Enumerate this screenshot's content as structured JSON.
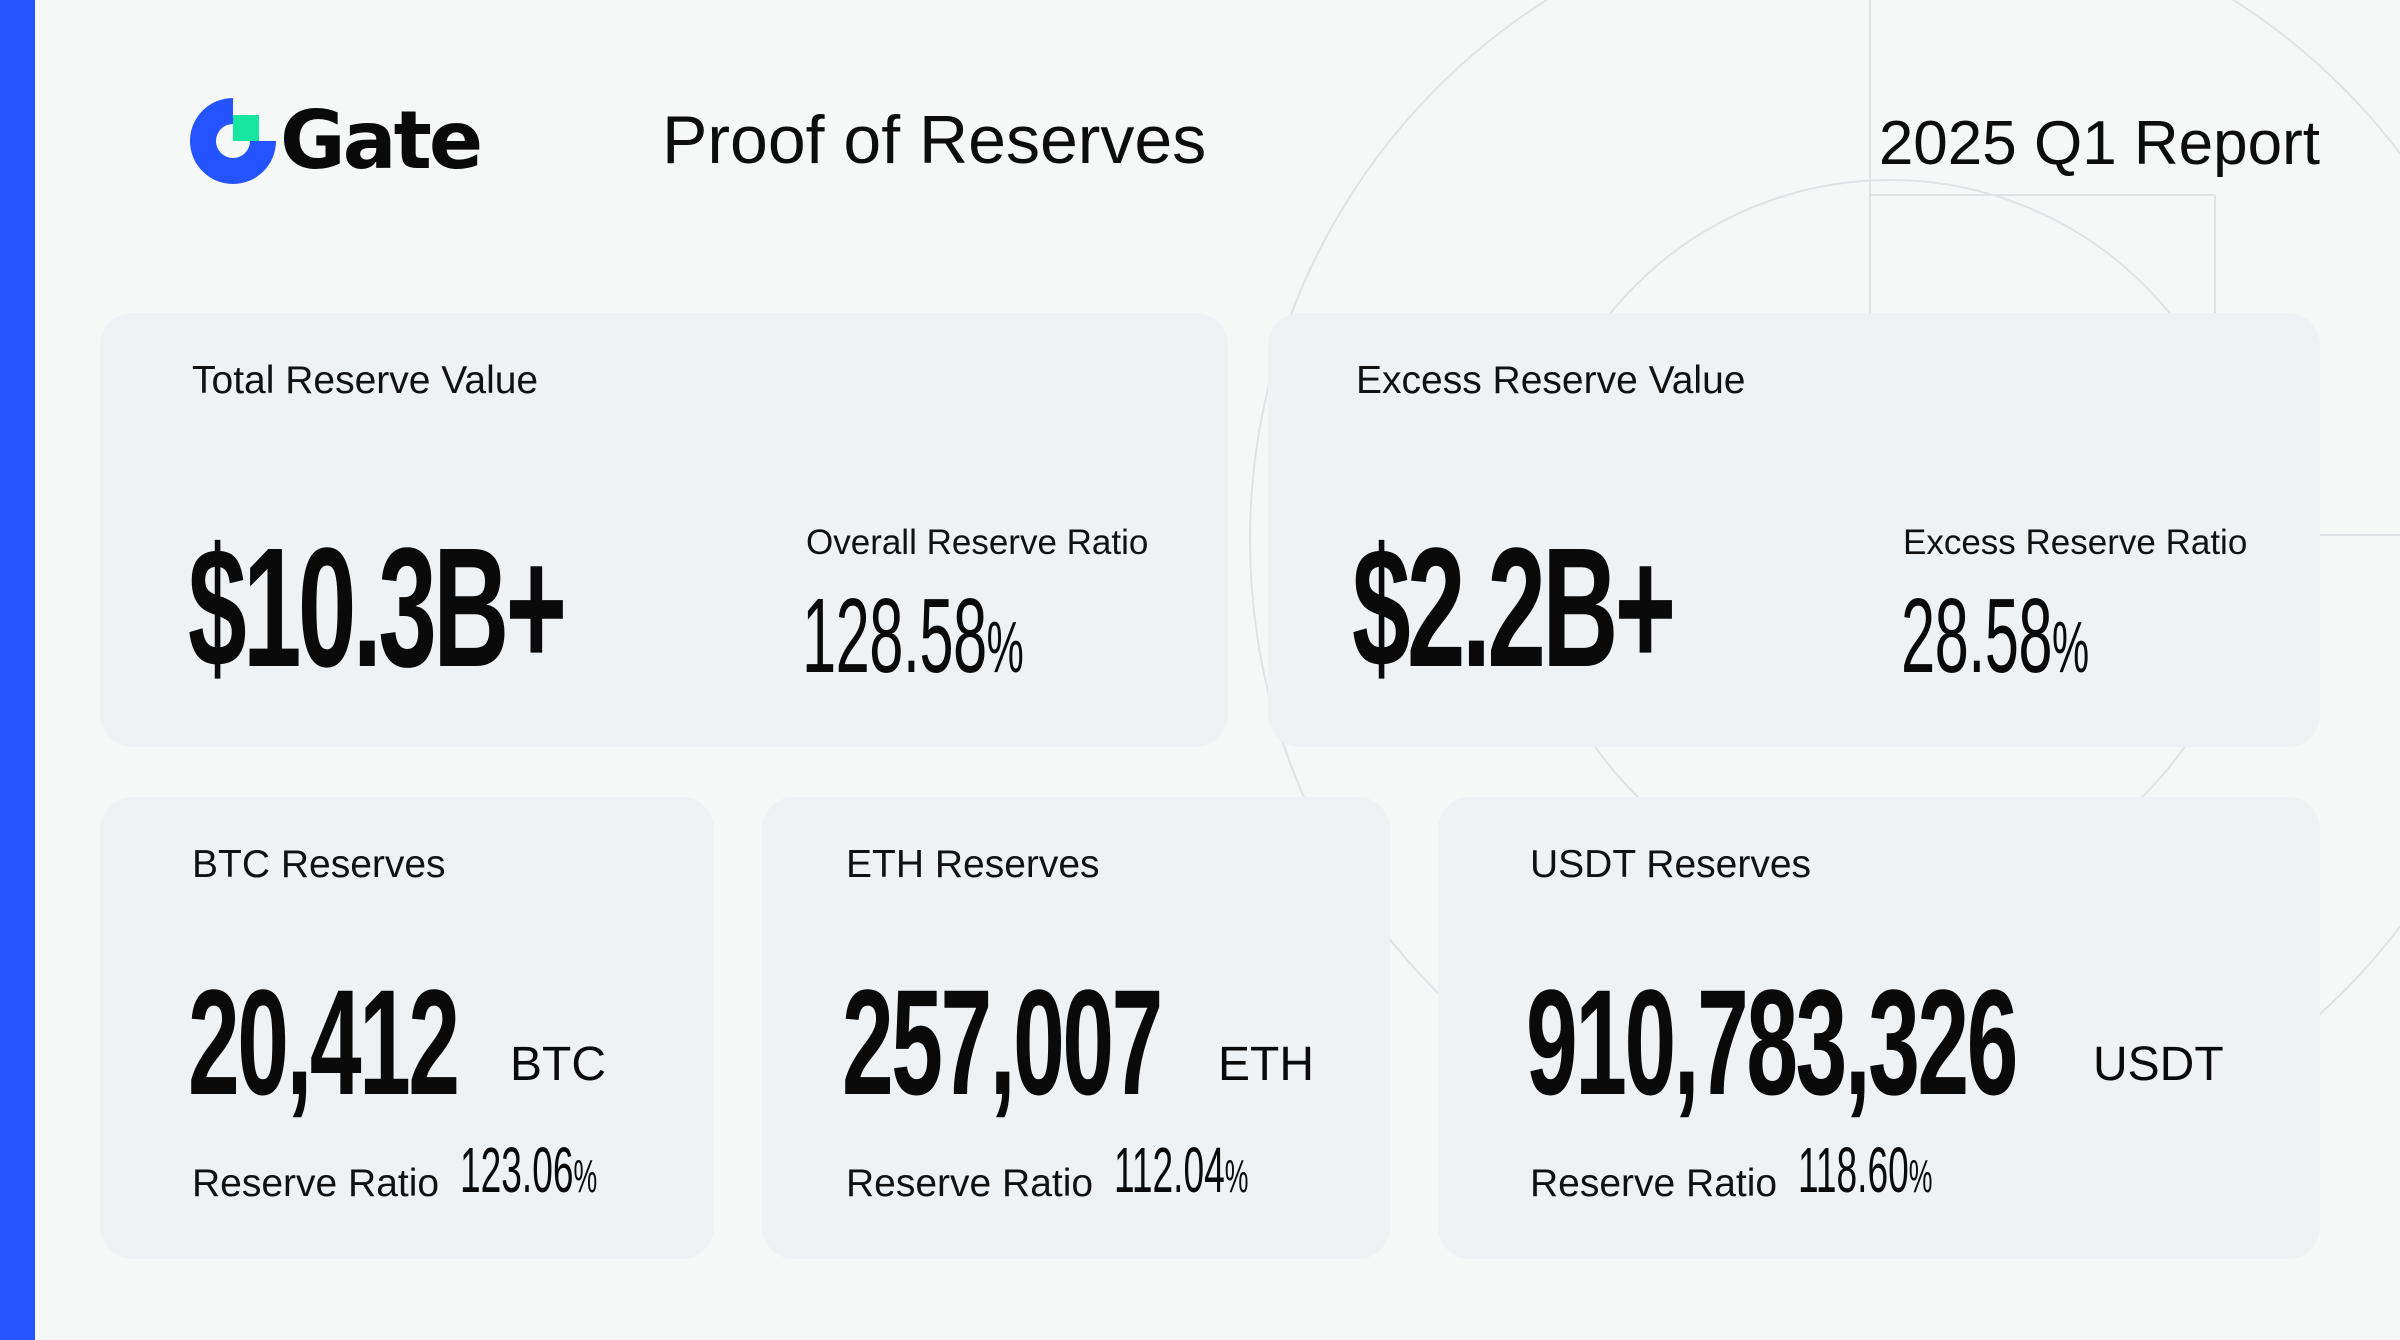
{
  "brand": {
    "name": "Gate",
    "mark_color": "#2354ff",
    "mark_accent_color": "#17e6a1",
    "side_bar_color": "#2354ff"
  },
  "header": {
    "title": "Proof of Reserves",
    "report": "2025 Q1 Report"
  },
  "total_reserve": {
    "label": "Total Reserve Value",
    "value": "$10.3B+",
    "ratio_label": "Overall Reserve Ratio",
    "ratio_value": "128.58",
    "ratio_unit": "%"
  },
  "excess_reserve": {
    "label": "Excess Reserve Value",
    "value": "$2.2B+",
    "ratio_label": "Excess Reserve Ratio",
    "ratio_value": "28.58",
    "ratio_unit": "%"
  },
  "assets": [
    {
      "label": "BTC Reserves",
      "amount": "20,412",
      "unit": "BTC",
      "ratio_label": "Reserve Ratio",
      "ratio_value": "123.06",
      "ratio_unit": "%"
    },
    {
      "label": "ETH Reserves",
      "amount": "257,007",
      "unit": "ETH",
      "ratio_label": "Reserve Ratio",
      "ratio_value": "112.04",
      "ratio_unit": "%"
    },
    {
      "label": "USDT Reserves",
      "amount": "910,783,326",
      "unit": "USDT",
      "ratio_label": "Reserve Ratio",
      "ratio_value": "118.60",
      "ratio_unit": "%"
    }
  ]
}
